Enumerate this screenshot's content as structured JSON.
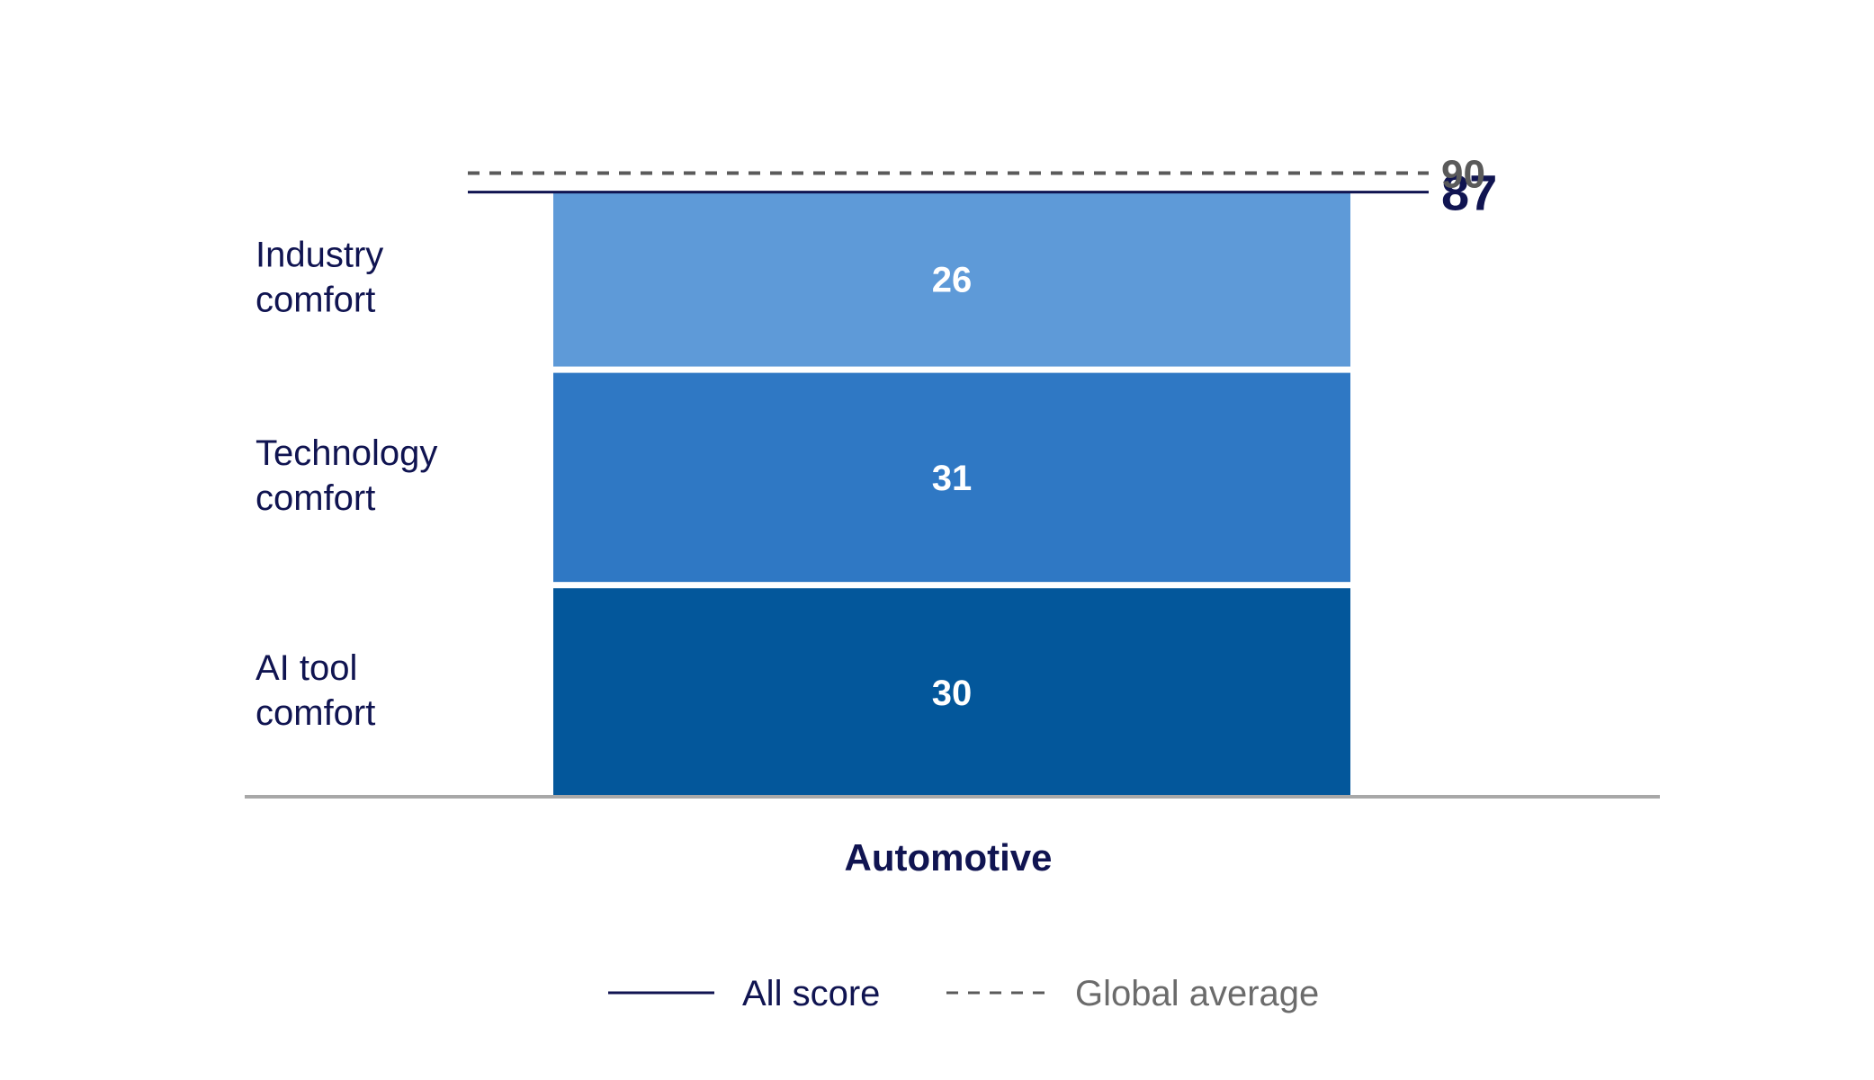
{
  "chart_data": {
    "type": "bar",
    "categories": [
      "Automotive"
    ],
    "series": [
      {
        "name": "AI tool comfort",
        "values": [
          30
        ]
      },
      {
        "name": "Technology comfort",
        "values": [
          31
        ]
      },
      {
        "name": "Industry comfort",
        "values": [
          26
        ]
      }
    ],
    "segment_labels": [
      [
        "AI tool",
        "comfort"
      ],
      [
        "Technology",
        "comfort"
      ],
      [
        "Industry",
        "comfort"
      ]
    ],
    "total": {
      "value": 87,
      "label": "87"
    },
    "global_average": {
      "value": 90,
      "label": "90"
    },
    "legend": {
      "all_score": "All score",
      "global_average": "Global average",
      "placement": "bottom-center"
    },
    "colors": {
      "ai_tool": "#03579B",
      "technology": "#2F78C4",
      "industry": "#5E9AD8",
      "all_score_line": "#101451",
      "global_average_line": "#5A5A5A",
      "axis": "#A8A8A8"
    },
    "stacked": true,
    "grid": false
  }
}
